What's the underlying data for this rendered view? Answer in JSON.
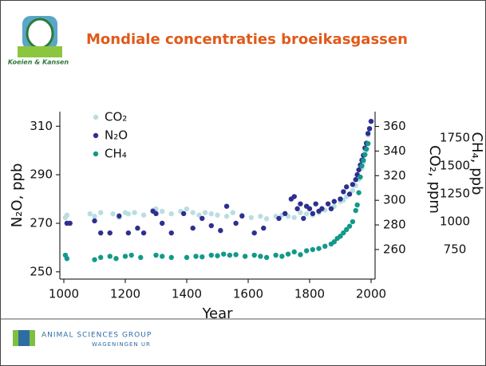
{
  "slide": {
    "title": "Mondiale concentraties broeikasgassen",
    "logo_text": "Koeien & Kansen",
    "footer_org": "ANIMAL SCIENCES GROUP",
    "footer_sub": "WAGENINGEN UR"
  },
  "chart_data": {
    "type": "scatter",
    "x_label": "Year",
    "y_label": "N₂O, ppb",
    "y2_label": "CO₂, ppm",
    "y3_label": "CH₄, ppb",
    "xlim": [
      987,
      2013
    ],
    "xticks": [
      1000,
      1200,
      1400,
      1600,
      1800,
      2000
    ],
    "ylim": [
      247,
      316
    ],
    "yticks": [
      250,
      270,
      290,
      310
    ],
    "y2lim": [
      236,
      372
    ],
    "y2ticks": [
      260,
      280,
      300,
      320,
      340,
      360
    ],
    "y3lim": [
      486,
      1986
    ],
    "y3ticks": [
      750,
      1000,
      1250,
      1500,
      1750
    ],
    "legend": "upper left",
    "series": [
      {
        "name": "CO₂",
        "color": "#b9dde3",
        "axis": "y2",
        "x": [
          1005,
          1010,
          1085,
          1100,
          1120,
          1160,
          1180,
          1200,
          1210,
          1230,
          1260,
          1290,
          1300,
          1320,
          1350,
          1380,
          1400,
          1420,
          1440,
          1460,
          1480,
          1500,
          1530,
          1550,
          1580,
          1610,
          1640,
          1660,
          1690,
          1710,
          1730,
          1750,
          1770,
          1790,
          1810,
          1830,
          1850,
          1870,
          1880,
          1900,
          1910,
          1920,
          1930,
          1940,
          1950,
          1960,
          1970,
          1975,
          1980,
          1985,
          1990,
          1995,
          2000
        ],
        "values": [
          286,
          288,
          289,
          287,
          290,
          289,
          286,
          290,
          289,
          290,
          288,
          292,
          293,
          291,
          289,
          291,
          293,
          290,
          288,
          290,
          289,
          288,
          287,
          290,
          288,
          286,
          287,
          285,
          287,
          288,
          287,
          286,
          290,
          289,
          288,
          290,
          292,
          293,
          295,
          299,
          300,
          303,
          305,
          308,
          312,
          317,
          326,
          331,
          339,
          346,
          353,
          358,
          364
        ]
      },
      {
        "name": "N₂O",
        "color": "#2e2f8e",
        "axis": "y",
        "x": [
          1010,
          1020,
          1100,
          1120,
          1150,
          1180,
          1210,
          1240,
          1260,
          1290,
          1300,
          1320,
          1350,
          1390,
          1420,
          1450,
          1480,
          1510,
          1530,
          1560,
          1580,
          1620,
          1650,
          1700,
          1720,
          1740,
          1750,
          1760,
          1770,
          1780,
          1790,
          1800,
          1810,
          1820,
          1830,
          1840,
          1860,
          1870,
          1880,
          1900,
          1910,
          1920,
          1930,
          1940,
          1950,
          1955,
          1960,
          1965,
          1970,
          1975,
          1980,
          1985,
          1990,
          1995,
          2000
        ],
        "values": [
          270,
          270,
          271,
          266,
          266,
          273,
          266,
          268,
          266,
          275,
          274,
          270,
          266,
          274,
          268,
          272,
          269,
          267,
          277,
          270,
          273,
          266,
          268,
          272,
          274,
          280,
          281,
          276,
          278,
          272,
          277,
          276,
          274,
          278,
          275,
          276,
          278,
          276,
          279,
          280,
          283,
          285,
          282,
          286,
          288,
          290,
          292,
          294,
          296,
          298,
          301,
          303,
          307,
          309,
          312
        ]
      },
      {
        "name": "CH₄",
        "color": "#12998a",
        "axis": "y3",
        "x": [
          1005,
          1010,
          1100,
          1120,
          1150,
          1170,
          1200,
          1220,
          1250,
          1300,
          1320,
          1350,
          1400,
          1430,
          1450,
          1480,
          1500,
          1520,
          1540,
          1560,
          1590,
          1620,
          1640,
          1660,
          1690,
          1710,
          1730,
          1750,
          1770,
          1790,
          1810,
          1830,
          1850,
          1870,
          1880,
          1890,
          1900,
          1910,
          1920,
          1930,
          1940,
          1950,
          1955,
          1960,
          1965,
          1970,
          1975,
          1980,
          1985,
          1990
        ],
        "values": [
          700,
          670,
          660,
          680,
          690,
          670,
          690,
          700,
          680,
          700,
          690,
          680,
          680,
          690,
          685,
          700,
          695,
          710,
          700,
          705,
          690,
          700,
          690,
          680,
          700,
          690,
          710,
          730,
          705,
          740,
          750,
          760,
          780,
          800,
          820,
          850,
          870,
          900,
          930,
          960,
          1000,
          1100,
          1150,
          1260,
          1400,
          1500,
          1550,
          1600,
          1650,
          1700
        ]
      }
    ]
  }
}
